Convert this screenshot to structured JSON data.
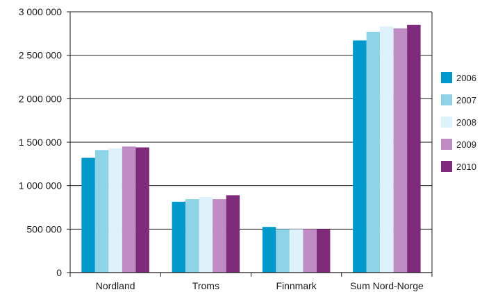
{
  "chart_data": {
    "type": "bar",
    "title": "",
    "xlabel": "",
    "ylabel": "",
    "categories": [
      "Nordland",
      "Troms",
      "Finnmark",
      "Sum Nord-Norge"
    ],
    "ylim": [
      0,
      3000000
    ],
    "yticks": [
      0,
      500000,
      1000000,
      1500000,
      2000000,
      2500000,
      3000000
    ],
    "ytick_labels": [
      "0",
      "500 000",
      "1 000 000",
      "1 500 000",
      "2 000 000",
      "2 500 000",
      "3 000 000"
    ],
    "grid": true,
    "legend_position": "right",
    "series": [
      {
        "name": "2006",
        "color": "#0099cc",
        "values": [
          1320000,
          815000,
          525000,
          2670000
        ]
      },
      {
        "name": "2007",
        "color": "#8fd3e6",
        "values": [
          1410000,
          845000,
          500000,
          2770000
        ]
      },
      {
        "name": "2008",
        "color": "#dff1fa",
        "values": [
          1430000,
          870000,
          500000,
          2830000
        ]
      },
      {
        "name": "2009",
        "color": "#c08cc4",
        "values": [
          1450000,
          845000,
          500000,
          2810000
        ]
      },
      {
        "name": "2010",
        "color": "#7f2a7a",
        "values": [
          1440000,
          890000,
          500000,
          2850000
        ]
      }
    ]
  }
}
